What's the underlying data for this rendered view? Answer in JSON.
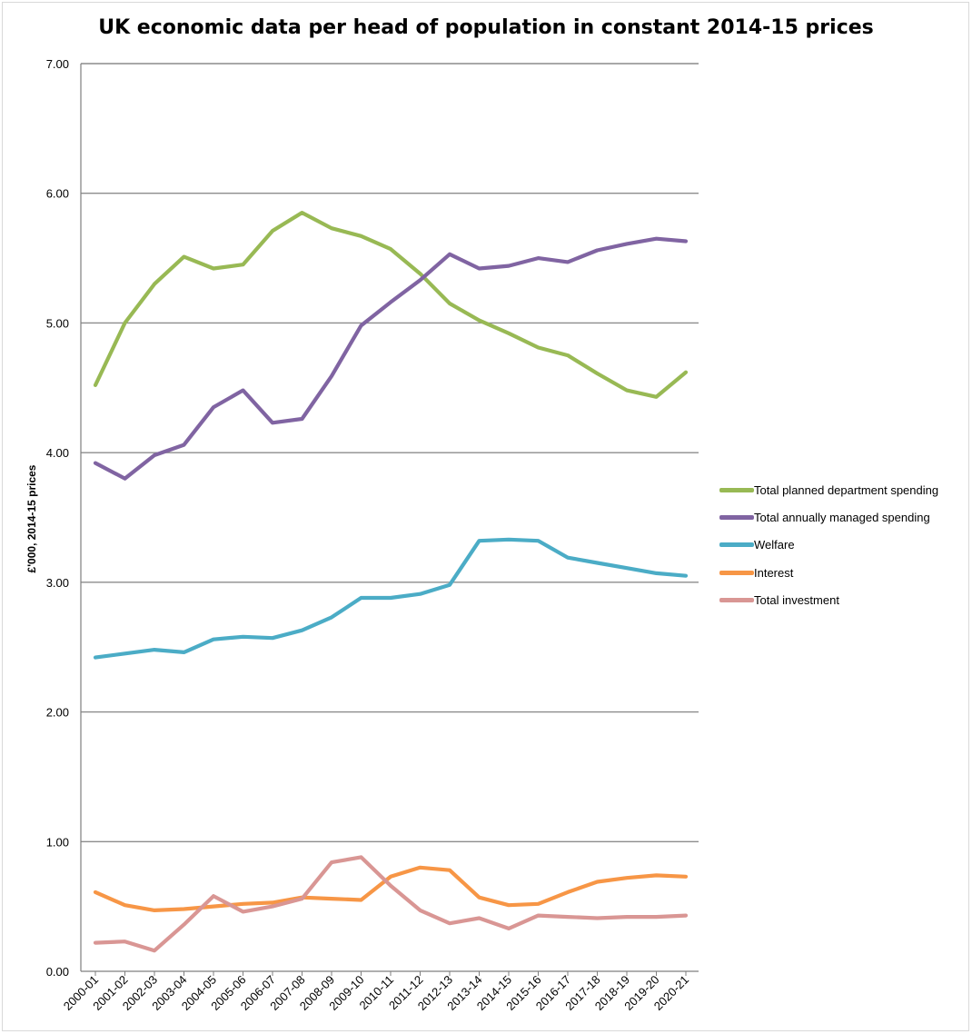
{
  "chart_data": {
    "type": "line",
    "title": "UK economic data per head of population in constant 2014-15 prices",
    "xlabel": "",
    "ylabel": "£'000, 2014-15 prices",
    "ylim": [
      0,
      7
    ],
    "yticks": [
      "0.00",
      "1.00",
      "2.00",
      "3.00",
      "4.00",
      "5.00",
      "6.00",
      "7.00"
    ],
    "grid": true,
    "legend_position": "right",
    "categories": [
      "2000-01",
      "2001-02",
      "2002-03",
      "2003-04",
      "2004-05",
      "2005-06",
      "2006-07",
      "2007-08",
      "2008-09",
      "2009-10",
      "2010-11",
      "2011-12",
      "2012-13",
      "2013-14",
      "2014-15",
      "2015-16",
      "2016-17",
      "2017-18",
      "2018-19",
      "2019-20",
      "2020-21"
    ],
    "series": [
      {
        "name": "Total planned department spending",
        "color": "#98b954",
        "values": [
          4.52,
          5.0,
          5.3,
          5.51,
          5.42,
          5.45,
          5.71,
          5.85,
          5.73,
          5.67,
          5.57,
          5.38,
          5.15,
          5.02,
          4.92,
          4.81,
          4.75,
          4.61,
          4.48,
          4.43,
          4.62
        ]
      },
      {
        "name": "Total annually managed spending",
        "color": "#8064a2",
        "values": [
          3.92,
          3.8,
          3.98,
          4.06,
          4.35,
          4.48,
          4.23,
          4.26,
          4.59,
          4.98,
          5.16,
          5.33,
          5.53,
          5.42,
          5.44,
          5.5,
          5.47,
          5.56,
          5.61,
          5.65,
          5.63
        ]
      },
      {
        "name": "Welfare",
        "color": "#4bacc6",
        "values": [
          2.42,
          2.45,
          2.48,
          2.46,
          2.56,
          2.58,
          2.57,
          2.63,
          2.73,
          2.88,
          2.88,
          2.91,
          2.98,
          3.32,
          3.33,
          3.32,
          3.19,
          3.15,
          3.11,
          3.07,
          3.05
        ]
      },
      {
        "name": "Interest",
        "color": "#f79646",
        "values": [
          0.61,
          0.51,
          0.47,
          0.48,
          0.5,
          0.52,
          0.53,
          0.57,
          0.56,
          0.55,
          0.73,
          0.8,
          0.78,
          0.57,
          0.51,
          0.52,
          0.61,
          0.69,
          0.72,
          0.74,
          0.73
        ]
      },
      {
        "name": "Total investment",
        "color": "#d99694",
        "values": [
          0.22,
          0.23,
          0.16,
          0.36,
          0.58,
          0.46,
          0.5,
          0.56,
          0.84,
          0.88,
          0.66,
          0.47,
          0.37,
          0.41,
          0.33,
          0.43,
          0.42,
          0.41,
          0.42,
          0.42,
          0.43
        ]
      }
    ]
  }
}
